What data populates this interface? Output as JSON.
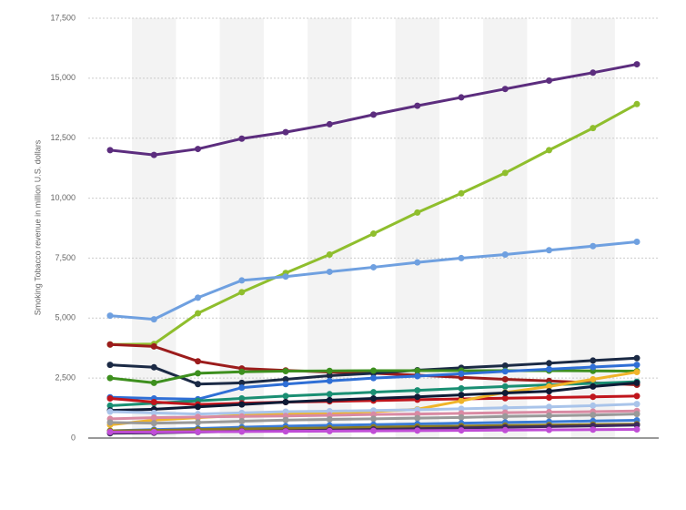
{
  "chart_data": {
    "type": "line",
    "y_label": "Smoking Tobacco revenue in million U.S. dollars",
    "categories": [
      null,
      null,
      null,
      null,
      null,
      null,
      null,
      null,
      null,
      null,
      null,
      null,
      null
    ],
    "ylim": [
      0,
      17500
    ],
    "yticks": [
      0,
      {
        "value": 2500,
        "label": "2,500"
      },
      {
        "value": 5000,
        "label": "5,000"
      },
      {
        "value": 7500,
        "label": "7,500"
      },
      {
        "value": 10000,
        "label": "10,000"
      },
      {
        "value": 12500,
        "label": "12,500"
      },
      {
        "value": 15000,
        "label": "15,000"
      },
      {
        "value": 17500,
        "label": "17,500"
      }
    ],
    "grid": true,
    "series": [
      {
        "color": "#5c2d7e",
        "values": [
          12000,
          11800,
          12050,
          12480,
          12750,
          13080,
          13480,
          13850,
          14200,
          14550,
          14900,
          15230,
          15580
        ]
      },
      {
        "color": "#8fbe2d",
        "values": [
          3900,
          3920,
          5200,
          6080,
          6880,
          7650,
          8520,
          9400,
          10200,
          11050,
          12000,
          12920,
          13920
        ]
      },
      {
        "color": "#6fa0e0",
        "values": [
          5100,
          4950,
          5850,
          6570,
          6730,
          6930,
          7120,
          7320,
          7500,
          7650,
          7830,
          8000,
          8180
        ]
      },
      {
        "color": "#9c1c1c",
        "values": [
          3900,
          3820,
          3200,
          2900,
          2820,
          2750,
          2700,
          2620,
          2530,
          2450,
          2380,
          2300,
          2220
        ]
      },
      {
        "color": "#1b2a45",
        "values": [
          3050,
          2950,
          2250,
          2300,
          2450,
          2600,
          2700,
          2830,
          2930,
          3020,
          3120,
          3230,
          3330
        ]
      },
      {
        "color": "#3d8f1e",
        "values": [
          2500,
          2300,
          2700,
          2760,
          2790,
          2800,
          2810,
          2810,
          2810,
          2810,
          2810,
          2800,
          2790
        ]
      },
      {
        "color": "#2f6fd6",
        "values": [
          1700,
          1650,
          1620,
          2100,
          2250,
          2380,
          2500,
          2580,
          2680,
          2780,
          2870,
          2960,
          3050
        ]
      },
      {
        "color": "#1a8f73",
        "values": [
          1350,
          1450,
          1550,
          1650,
          1750,
          1830,
          1910,
          1990,
          2070,
          2150,
          2220,
          2280,
          2350
        ]
      },
      {
        "color": "#c0151c",
        "values": [
          1650,
          1500,
          1400,
          1450,
          1500,
          1530,
          1560,
          1600,
          1630,
          1660,
          1690,
          1720,
          1750
        ]
      },
      {
        "color": "#f0b429",
        "values": [
          550,
          750,
          850,
          950,
          1000,
          1050,
          1100,
          1200,
          1550,
          1900,
          2150,
          2450,
          2750
        ]
      },
      {
        "color": "#0e1b36",
        "values": [
          1150,
          1200,
          1300,
          1400,
          1500,
          1580,
          1650,
          1720,
          1800,
          1880,
          1950,
          2150,
          2300
        ]
      },
      {
        "color": "#a9c4ea",
        "values": [
          1100,
          1050,
          1000,
          1050,
          1100,
          1120,
          1150,
          1180,
          1220,
          1260,
          1300,
          1350,
          1420
        ]
      },
      {
        "color": "#d98aa3",
        "values": [
          800,
          850,
          880,
          900,
          920,
          950,
          980,
          1000,
          1030,
          1060,
          1080,
          1100,
          1130
        ]
      },
      {
        "color": "#999999",
        "values": [
          650,
          620,
          650,
          700,
          750,
          780,
          800,
          830,
          860,
          900,
          930,
          960,
          1000
        ]
      },
      {
        "color": "#3a7bd5",
        "values": [
          300,
          350,
          400,
          450,
          500,
          530,
          560,
          590,
          620,
          650,
          680,
          710,
          740
        ]
      },
      {
        "color": "#8c7a1e",
        "values": [
          300,
          320,
          350,
          380,
          400,
          420,
          450,
          480,
          500,
          520,
          540,
          560,
          580
        ]
      },
      {
        "color": "#3c2a5c",
        "values": [
          200,
          220,
          250,
          280,
          300,
          330,
          360,
          390,
          420,
          450,
          480,
          510,
          540
        ]
      },
      {
        "color": "#c04dd6",
        "values": [
          250,
          250,
          260,
          270,
          280,
          290,
          300,
          310,
          320,
          330,
          340,
          350,
          360
        ]
      }
    ]
  }
}
